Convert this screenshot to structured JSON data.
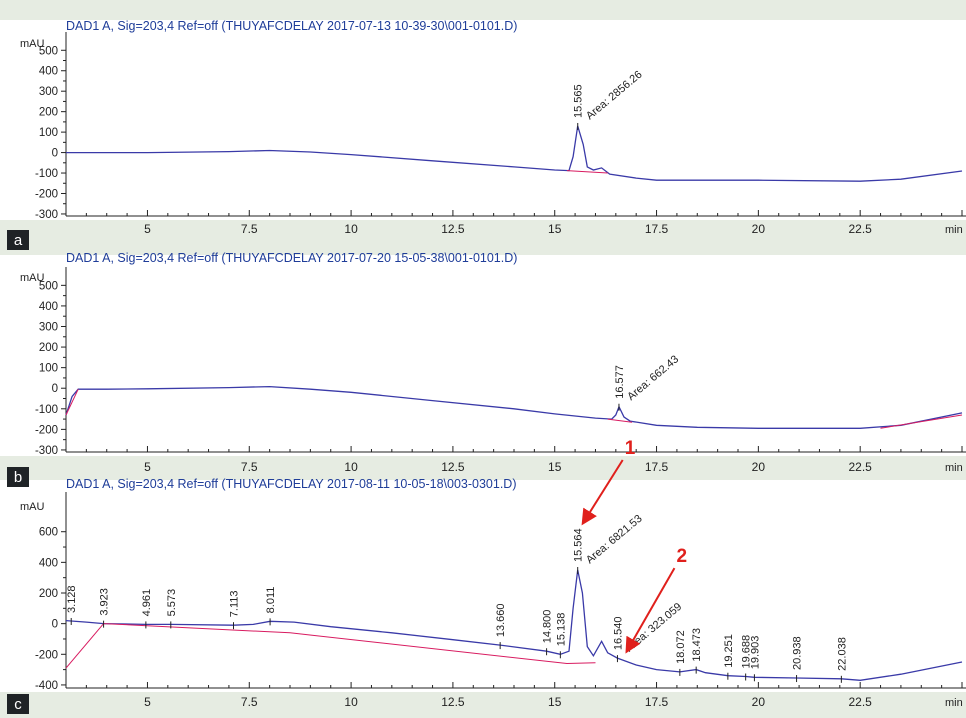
{
  "colors": {
    "background": "#e6ece2",
    "plot_background": "#ffffff",
    "trace": "#3a3aa8",
    "baseline": "#d81b60",
    "title": "#1f3d99",
    "axis": "#222222",
    "arrow": "#e0201c",
    "badge": "#1f2326"
  },
  "chart_data": [
    {
      "type": "line",
      "panel_label": "a",
      "title": "DAD1 A, Sig=203,4 Ref=off (THUYAFCDELAY 2017-07-13 10-39-30\\001-0101.D)",
      "ylabel": "mAU",
      "xunit": "min",
      "xlim": [
        3.0,
        25.0
      ],
      "ylim": [
        -310,
        560
      ],
      "xticks": [
        "5",
        "7.5",
        "10",
        "12.5",
        "15",
        "17.5",
        "20",
        "22.5"
      ],
      "yticks": [
        "500",
        "400",
        "300",
        "200",
        "100",
        "0",
        "-100",
        "-200",
        "-300"
      ],
      "grid": false,
      "series": [
        {
          "role": "signal",
          "points": [
            [
              3.0,
              0
            ],
            [
              5.0,
              0
            ],
            [
              7.0,
              5
            ],
            [
              8.0,
              10
            ],
            [
              9.0,
              3
            ],
            [
              10.0,
              -10
            ],
            [
              12.0,
              -40
            ],
            [
              14.0,
              -70
            ],
            [
              15.0,
              -85
            ],
            [
              15.35,
              -88
            ],
            [
              15.45,
              -20
            ],
            [
              15.565,
              130
            ],
            [
              15.7,
              40
            ],
            [
              15.8,
              -70
            ],
            [
              15.95,
              -85
            ],
            [
              16.15,
              -75
            ],
            [
              16.35,
              -105
            ],
            [
              17.0,
              -125
            ],
            [
              17.5,
              -135
            ],
            [
              20.0,
              -135
            ],
            [
              22.5,
              -140
            ],
            [
              23.5,
              -130
            ],
            [
              25.0,
              -90
            ]
          ]
        },
        {
          "role": "baseline",
          "points": [
            [
              15.3,
              -88
            ],
            [
              16.3,
              -100
            ]
          ]
        }
      ],
      "annotations": [
        {
          "text": "15.565",
          "x": 15.565
        },
        {
          "text": "Area: 2856.26",
          "x": 15.565
        }
      ]
    },
    {
      "type": "line",
      "panel_label": "b",
      "title": "DAD1 A, Sig=203,4 Ref=off (THUYAFCDELAY 2017-07-20 15-05-38\\001-0101.D)",
      "ylabel": "mAU",
      "xunit": "min",
      "xlim": [
        3.0,
        25.0
      ],
      "ylim": [
        -310,
        560
      ],
      "xticks": [
        "5",
        "7.5",
        "10",
        "12.5",
        "15",
        "17.5",
        "20",
        "22.5"
      ],
      "yticks": [
        "500",
        "400",
        "300",
        "200",
        "100",
        "0",
        "-100",
        "-200",
        "-300"
      ],
      "grid": false,
      "series": [
        {
          "role": "signal",
          "points": [
            [
              3.0,
              -130
            ],
            [
              3.15,
              -40
            ],
            [
              3.3,
              -5
            ],
            [
              4.0,
              -5
            ],
            [
              5.0,
              -3
            ],
            [
              7.0,
              3
            ],
            [
              8.0,
              8
            ],
            [
              9.0,
              -5
            ],
            [
              10.0,
              -20
            ],
            [
              12.0,
              -60
            ],
            [
              14.0,
              -100
            ],
            [
              15.0,
              -125
            ],
            [
              16.0,
              -145
            ],
            [
              16.4,
              -150
            ],
            [
              16.5,
              -130
            ],
            [
              16.577,
              -90
            ],
            [
              16.7,
              -140
            ],
            [
              16.85,
              -160
            ],
            [
              17.5,
              -180
            ],
            [
              18.5,
              -190
            ],
            [
              20.0,
              -195
            ],
            [
              22.5,
              -195
            ],
            [
              23.5,
              -180
            ],
            [
              25.0,
              -120
            ]
          ]
        },
        {
          "role": "baseline",
          "points": [
            [
              16.3,
              -150
            ],
            [
              16.9,
              -165
            ]
          ]
        },
        {
          "role": "baseline",
          "points": [
            [
              3.0,
              -130
            ],
            [
              3.3,
              -5
            ]
          ]
        },
        {
          "role": "baseline",
          "points": [
            [
              23.0,
              -195
            ],
            [
              25.0,
              -130
            ]
          ]
        }
      ],
      "annotations": [
        {
          "text": "16.577",
          "x": 16.577
        },
        {
          "text": "Area: 662.43",
          "x": 16.577
        }
      ]
    },
    {
      "type": "line",
      "panel_label": "c",
      "title": "DAD1 A, Sig=203,4 Ref=off (THUYAFCDELAY 2017-08-11 10-05-18\\003-0301.D)",
      "ylabel": "mAU",
      "xunit": "min",
      "xlim": [
        3.0,
        25.0
      ],
      "ylim": [
        -420,
        820
      ],
      "xticks": [
        "5",
        "7.5",
        "10",
        "12.5",
        "15",
        "17.5",
        "20",
        "22.5"
      ],
      "yticks": [
        "600",
        "400",
        "200",
        "0",
        "-200",
        "-400"
      ],
      "grid": false,
      "series": [
        {
          "role": "signal",
          "points": [
            [
              3.0,
              20
            ],
            [
              3.5,
              10
            ],
            [
              3.923,
              0
            ],
            [
              4.961,
              -5
            ],
            [
              5.573,
              -5
            ],
            [
              7.113,
              -10
            ],
            [
              7.6,
              -5
            ],
            [
              8.011,
              15
            ],
            [
              8.6,
              10
            ],
            [
              9.5,
              -20
            ],
            [
              11.0,
              -60
            ],
            [
              12.5,
              -105
            ],
            [
              13.66,
              -140
            ],
            [
              14.8,
              -180
            ],
            [
              15.138,
              -200
            ],
            [
              15.35,
              -180
            ],
            [
              15.45,
              100
            ],
            [
              15.564,
              350
            ],
            [
              15.68,
              200
            ],
            [
              15.8,
              -150
            ],
            [
              15.95,
              -210
            ],
            [
              16.15,
              -115
            ],
            [
              16.3,
              -190
            ],
            [
              16.54,
              -225
            ],
            [
              17.0,
              -270
            ],
            [
              17.5,
              -300
            ],
            [
              18.072,
              -315
            ],
            [
              18.473,
              -300
            ],
            [
              18.7,
              -320
            ],
            [
              19.251,
              -340
            ],
            [
              19.688,
              -345
            ],
            [
              19.903,
              -350
            ],
            [
              20.938,
              -355
            ],
            [
              22.038,
              -360
            ],
            [
              22.5,
              -370
            ],
            [
              23.5,
              -330
            ],
            [
              25.0,
              -250
            ]
          ]
        },
        {
          "role": "baseline",
          "points": [
            [
              3.0,
              -290
            ],
            [
              3.923,
              0
            ],
            [
              8.5,
              -60
            ],
            [
              15.3,
              -260
            ],
            [
              16.0,
              -255
            ]
          ]
        }
      ],
      "annotations": [
        {
          "text": "3.128",
          "x": 3.128
        },
        {
          "text": "3.923",
          "x": 3.923
        },
        {
          "text": "4.961",
          "x": 4.961
        },
        {
          "text": "5.573",
          "x": 5.573
        },
        {
          "text": "7.113",
          "x": 7.113
        },
        {
          "text": "8.011",
          "x": 8.011
        },
        {
          "text": "13.660",
          "x": 13.66
        },
        {
          "text": "14.800",
          "x": 14.8
        },
        {
          "text": "15.138",
          "x": 15.138
        },
        {
          "text": "15.564",
          "x": 15.564
        },
        {
          "text": "Area: 6821.53",
          "x": 15.564
        },
        {
          "text": "16.540",
          "x": 16.54
        },
        {
          "text": "Area: 323.059",
          "x": 16.54
        },
        {
          "text": "18.072",
          "x": 18.072
        },
        {
          "text": "18.473",
          "x": 18.473
        },
        {
          "text": "19.251",
          "x": 19.251
        },
        {
          "text": "19.688",
          "x": 19.688
        },
        {
          "text": "19.903",
          "x": 19.903
        },
        {
          "text": "20.938",
          "x": 20.938
        },
        {
          "text": "22.038",
          "x": 22.038
        }
      ],
      "callouts": [
        {
          "text": "1",
          "x": 15.564
        },
        {
          "text": "2",
          "x": 16.54
        }
      ]
    }
  ]
}
